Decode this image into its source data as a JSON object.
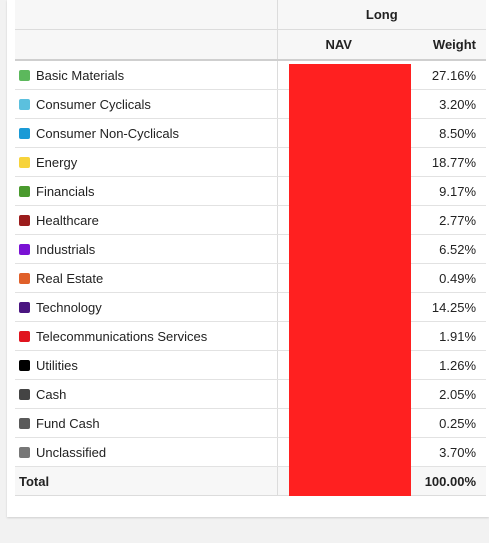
{
  "header": {
    "group_label": "Long",
    "nav_label": "NAV",
    "weight_label": "Weight"
  },
  "rows": [
    {
      "name": "Basic Materials",
      "color": "#5cb85c",
      "weight": "27.16%"
    },
    {
      "name": "Consumer Cyclicals",
      "color": "#5bc0de",
      "weight": "3.20%"
    },
    {
      "name": "Consumer Non-Cyclicals",
      "color": "#1a9ad6",
      "weight": "8.50%"
    },
    {
      "name": "Energy",
      "color": "#f7d33b",
      "weight": "18.77%"
    },
    {
      "name": "Financials",
      "color": "#4a9a2e",
      "weight": "9.17%"
    },
    {
      "name": "Healthcare",
      "color": "#9b1c1c",
      "weight": "2.77%"
    },
    {
      "name": "Industrials",
      "color": "#7a12d4",
      "weight": "6.52%"
    },
    {
      "name": "Real Estate",
      "color": "#e0602a",
      "weight": "0.49%"
    },
    {
      "name": "Technology",
      "color": "#4a1580",
      "weight": "14.25%"
    },
    {
      "name": "Telecommunications Services",
      "color": "#e0141e",
      "weight": "1.91%"
    },
    {
      "name": "Utilities",
      "color": "#000000",
      "weight": "1.26%"
    },
    {
      "name": "Cash",
      "color": "#444444",
      "weight": "2.05%"
    },
    {
      "name": "Fund Cash",
      "color": "#5a5a5a",
      "weight": "0.25%"
    },
    {
      "name": "Unclassified",
      "color": "#777777",
      "weight": "3.70%"
    }
  ],
  "total": {
    "label": "Total",
    "weight": "100.00%"
  },
  "nav_fill_color": "#ff2020"
}
